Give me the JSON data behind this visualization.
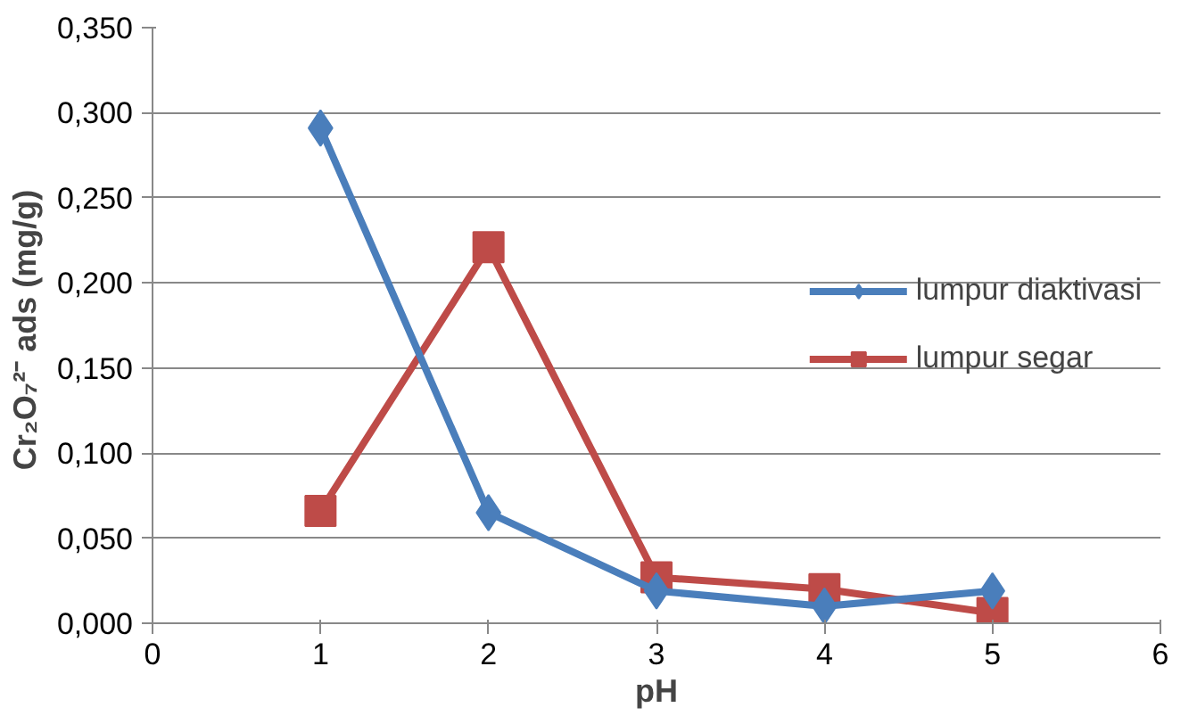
{
  "chart_data": {
    "type": "line",
    "xlabel": "pH",
    "ylabel": "Cr₂O₇²⁻ ads  (mg/g)",
    "xlim": [
      0,
      6
    ],
    "xticks": [
      0,
      1,
      2,
      3,
      4,
      5,
      6
    ],
    "ylim": [
      0,
      0.35
    ],
    "yticks": [
      {
        "value": 0,
        "label": "0,000"
      },
      {
        "value": 0.05,
        "label": "0,050"
      },
      {
        "value": 0.1,
        "label": "0,100"
      },
      {
        "value": 0.15,
        "label": "0,150"
      },
      {
        "value": 0.2,
        "label": "0,200"
      },
      {
        "value": 0.25,
        "label": "0,250"
      },
      {
        "value": 0.3,
        "label": "0,300"
      },
      {
        "value": 0.35,
        "label": "0,350"
      }
    ],
    "grid": "y",
    "legend": "right",
    "line_style": "solid",
    "series": [
      {
        "name": "lumpur diaktivasi",
        "color": "#4a7ebb",
        "marker": "diamond",
        "x": [
          1,
          2,
          3,
          4,
          5
        ],
        "values": [
          0.291,
          0.065,
          0.019,
          0.01,
          0.019
        ]
      },
      {
        "name": "lumpur segar",
        "color": "#be4b48",
        "marker": "square",
        "x": [
          1,
          2,
          3,
          4,
          5
        ],
        "values": [
          0.066,
          0.221,
          0.027,
          0.02,
          0.006
        ]
      }
    ]
  }
}
